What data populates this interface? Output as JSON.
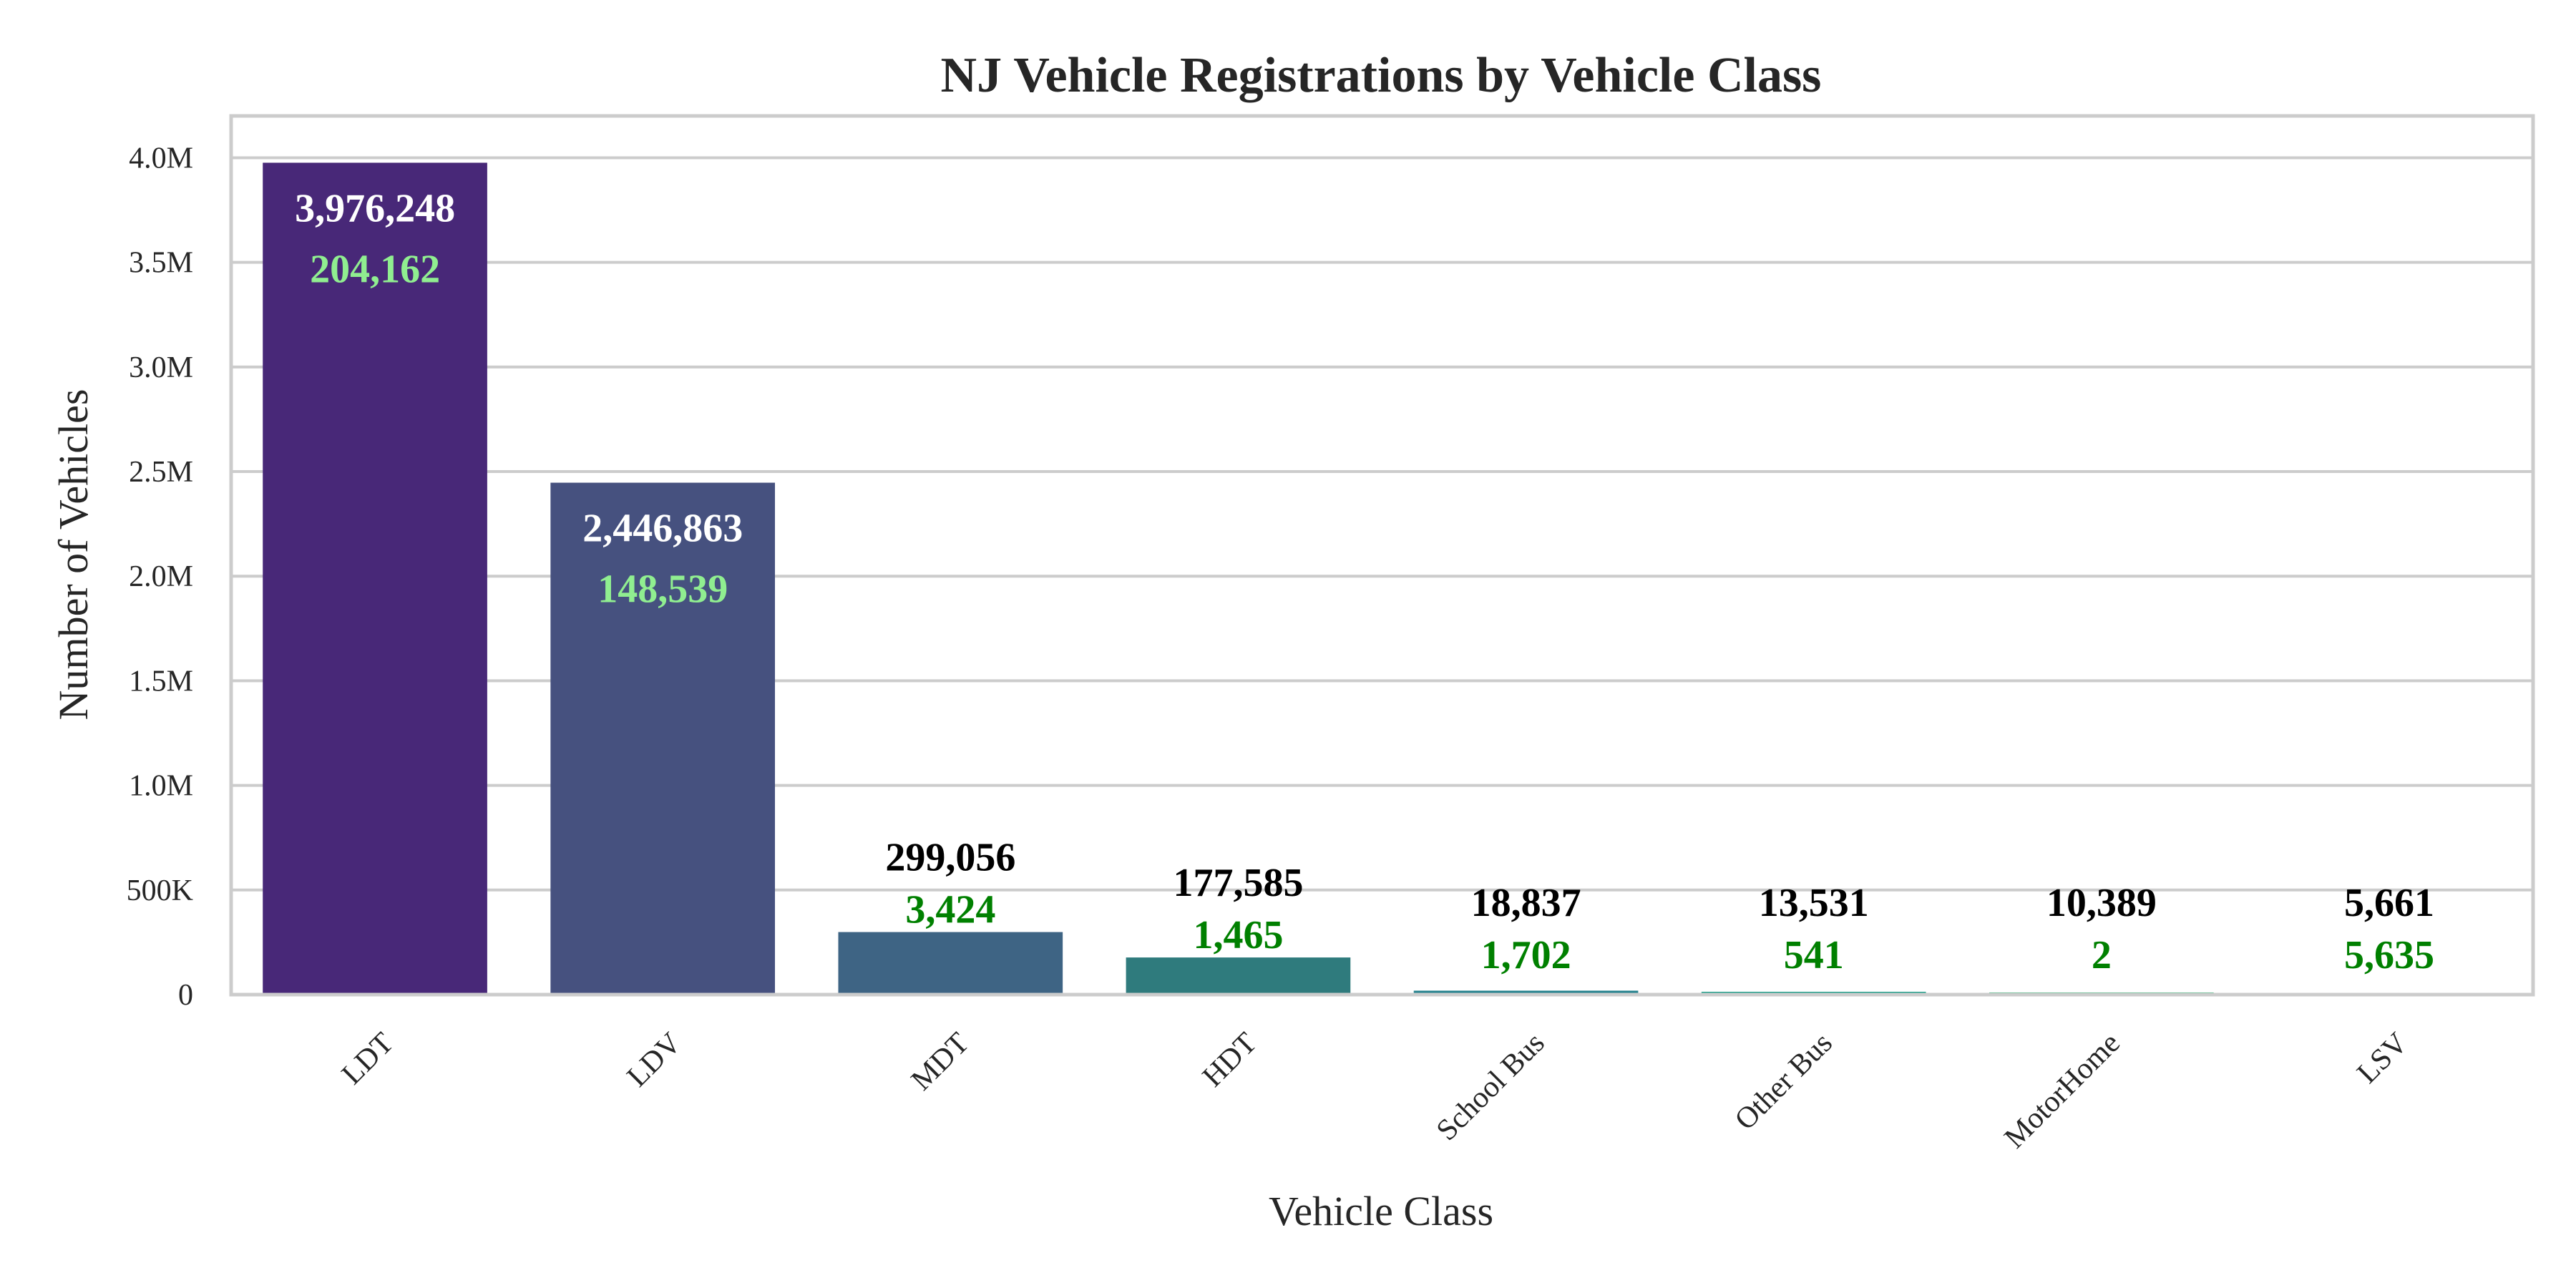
{
  "chart_data": {
    "type": "bar",
    "title": "NJ Vehicle Registrations by Vehicle Class",
    "xlabel": "Vehicle Class",
    "ylabel": "Number of Vehicles",
    "ylim": [
      0,
      4200000
    ],
    "yticks": [
      0,
      500000,
      1000000,
      1500000,
      2000000,
      2500000,
      3000000,
      3500000,
      4000000
    ],
    "ytick_labels": [
      "0",
      "500K",
      "1.0M",
      "1.5M",
      "2.0M",
      "2.5M",
      "3.0M",
      "3.5M",
      "4.0M"
    ],
    "grid": true,
    "categories": [
      "LDT",
      "LDV",
      "MDT",
      "HDT",
      "School Bus",
      "Other Bus",
      "MotorHome",
      "LSV"
    ],
    "series": [
      {
        "values": [
          3976248,
          2446863,
          299056,
          177585,
          18837,
          13531,
          10389,
          5661
        ],
        "labels": [
          "3,976,248",
          "2,446,863",
          "299,056",
          "177,585",
          "18,837",
          "13,531",
          "10,389",
          "5,661"
        ]
      },
      {
        "values": [
          204162,
          148539,
          3424,
          1465,
          1702,
          541,
          2,
          5635
        ],
        "labels": [
          "204,162",
          "148,539",
          "3,424",
          "1,465",
          "1,702",
          "541",
          "2",
          "5,635"
        ]
      }
    ],
    "colors": {
      "bars": [
        "#482878",
        "#46517f",
        "#3e6484",
        "#2f7b7d",
        "#26828e",
        "#1f9e89",
        "#35b779",
        "#6ece58"
      ],
      "total_label": "#000000",
      "total_label_inside": "#ffffff",
      "sub_label": "#008000",
      "sub_label_inside": "#90ee90",
      "grid": "#cccccc",
      "frame": "#cccccc"
    }
  }
}
